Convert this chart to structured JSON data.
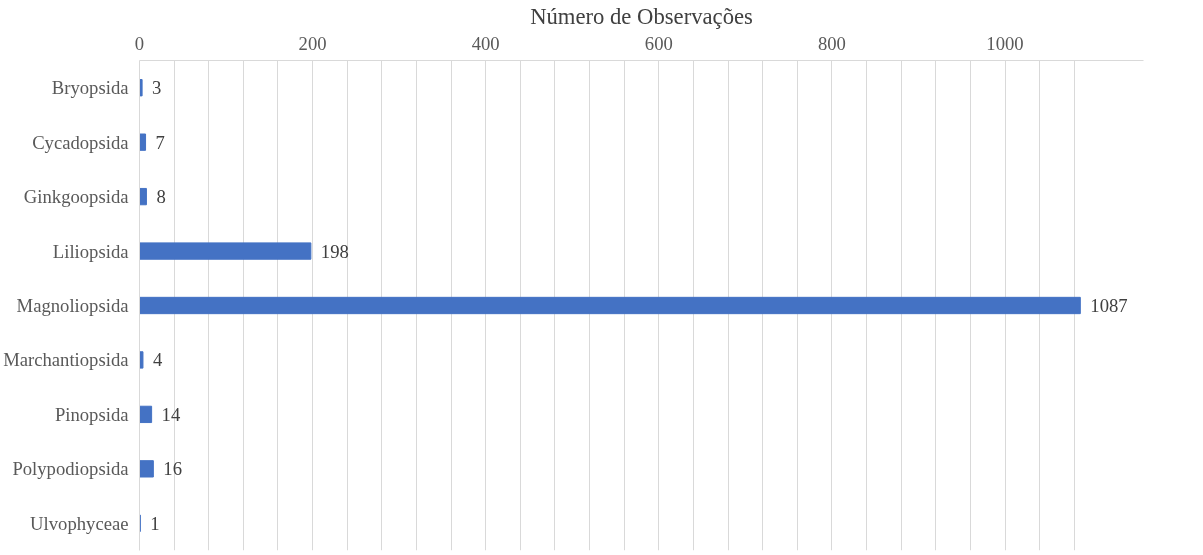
{
  "chart_data": {
    "type": "bar",
    "orientation": "horizontal",
    "xlabel": "Número de Observações",
    "categories": [
      "Bryopsida",
      "Cycadopsida",
      "Ginkgoopsida",
      "Liliopsida",
      "Magnoliopsida",
      "Marchantiopsida",
      "Pinopsida",
      "Polypodiopsida",
      "Ulvophyceae"
    ],
    "values": [
      3,
      7,
      8,
      198,
      1087,
      4,
      14,
      16,
      1
    ],
    "color": "#4472c4",
    "xlim": [
      0,
      1160
    ],
    "xticks": [
      0,
      {
        "value": 40,
        "label": null
      },
      {
        "value": 80,
        "label": null
      },
      {
        "value": 120,
        "label": null
      },
      {
        "value": 160,
        "label": null
      },
      200,
      {
        "value": 240,
        "label": null
      },
      {
        "value": 280,
        "label": null
      },
      {
        "value": 320,
        "label": null
      },
      {
        "value": 360,
        "label": null
      },
      400,
      {
        "value": 440,
        "label": null
      },
      {
        "value": 480,
        "label": null
      },
      {
        "value": 520,
        "label": null
      },
      {
        "value": 560,
        "label": null
      },
      600,
      {
        "value": 640,
        "label": null
      },
      {
        "value": 680,
        "label": null
      },
      {
        "value": 720,
        "label": null
      },
      {
        "value": 760,
        "label": null
      },
      800,
      {
        "value": 840,
        "label": null
      },
      {
        "value": 880,
        "label": null
      },
      {
        "value": 920,
        "label": null
      },
      {
        "value": 960,
        "label": null
      },
      1000,
      {
        "value": 1040,
        "label": null
      },
      {
        "value": 1080,
        "label": null
      }
    ],
    "grid": "x",
    "data_labels": true
  }
}
